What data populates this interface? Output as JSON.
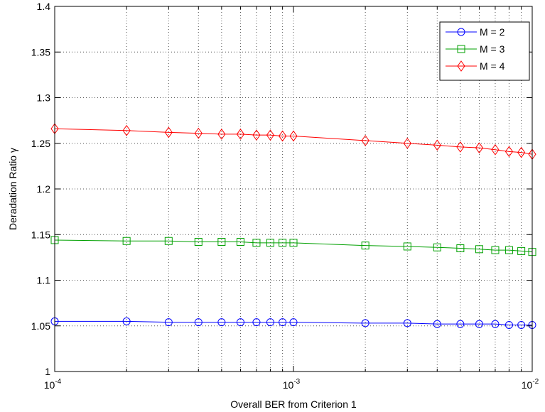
{
  "chart_data": {
    "type": "line",
    "xlabel": "Overall BER from Criterion 1",
    "ylabel": "Deradation Ratio γ",
    "xscale": "log",
    "xlim": [
      0.0001,
      0.01
    ],
    "ylim": [
      1,
      1.4
    ],
    "grid": true,
    "legend_position": "top-right",
    "x": [
      0.0001,
      0.0002,
      0.0003,
      0.0004,
      0.0005,
      0.0006,
      0.0007,
      0.0008,
      0.0009,
      0.001,
      0.002,
      0.003,
      0.004,
      0.005,
      0.006,
      0.007,
      0.008,
      0.009,
      0.01
    ],
    "x_ticks": [
      {
        "base": "10",
        "exp": "-4"
      },
      {
        "base": "10",
        "exp": "-3"
      },
      {
        "base": "10",
        "exp": "-2"
      }
    ],
    "y_ticks": [
      "1",
      "1.05",
      "1.1",
      "1.15",
      "1.2",
      "1.25",
      "1.3",
      "1.35",
      "1.4"
    ],
    "series": [
      {
        "name": "M = 2",
        "color": "#0000ff",
        "marker": "circle",
        "values": [
          1.055,
          1.055,
          1.054,
          1.054,
          1.054,
          1.054,
          1.054,
          1.054,
          1.054,
          1.054,
          1.053,
          1.053,
          1.052,
          1.052,
          1.052,
          1.052,
          1.051,
          1.051,
          1.051
        ]
      },
      {
        "name": "M = 3",
        "color": "#00a000",
        "marker": "square",
        "values": [
          1.144,
          1.143,
          1.143,
          1.142,
          1.142,
          1.142,
          1.141,
          1.141,
          1.141,
          1.141,
          1.138,
          1.137,
          1.136,
          1.135,
          1.134,
          1.133,
          1.133,
          1.132,
          1.131
        ]
      },
      {
        "name": "M = 4",
        "color": "#ff0000",
        "marker": "diamond",
        "values": [
          1.266,
          1.264,
          1.262,
          1.261,
          1.26,
          1.26,
          1.259,
          1.259,
          1.258,
          1.258,
          1.253,
          1.25,
          1.248,
          1.246,
          1.245,
          1.243,
          1.241,
          1.24,
          1.238
        ]
      }
    ]
  }
}
